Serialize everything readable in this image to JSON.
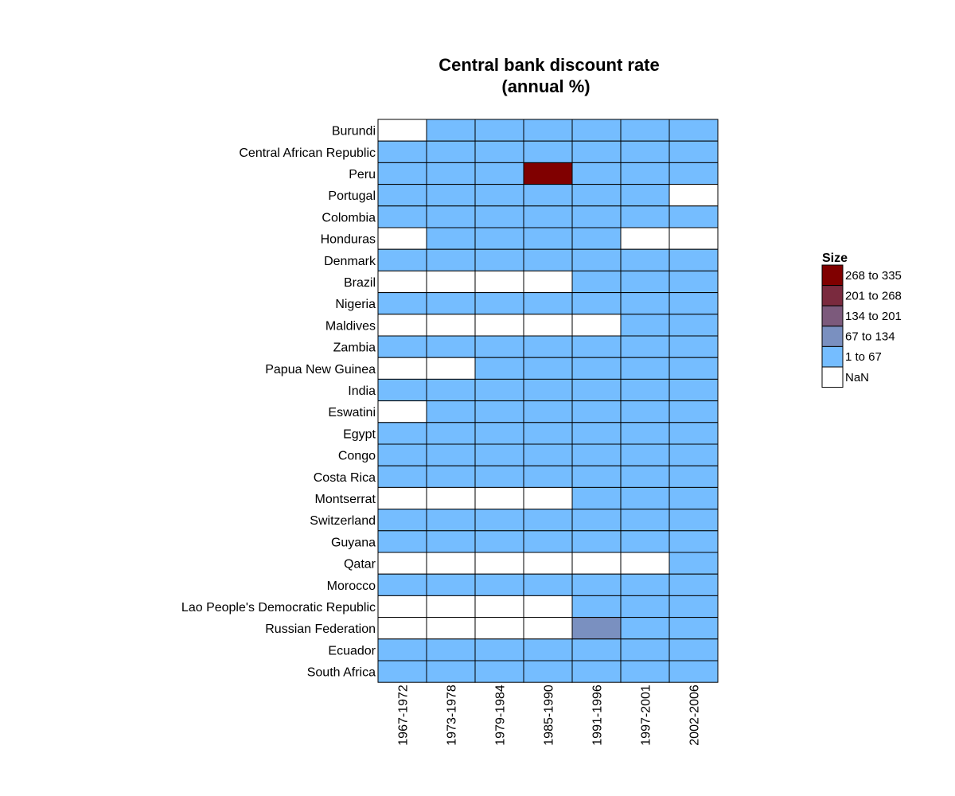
{
  "chart_data": {
    "type": "heatmap",
    "title": [
      "Central bank discount rate",
      "(annual %)"
    ],
    "x": [
      "1967-1972",
      "1973-1978",
      "1979-1984",
      "1985-1990",
      "1991-1996",
      "1997-2001",
      "2002-2006"
    ],
    "y": [
      "Burundi",
      "Central African Republic",
      "Peru",
      "Portugal",
      "Colombia",
      "Honduras",
      "Denmark",
      "Brazil",
      "Nigeria",
      "Maldives",
      "Zambia",
      "Papua New Guinea",
      "India",
      "Eswatini",
      "Egypt",
      "Congo",
      "Costa Rica",
      "Montserrat",
      "Switzerland",
      "Guyana",
      "Qatar",
      "Morocco",
      "Lao People's Democratic Republic",
      "Russian Federation",
      "Ecuador",
      "South Africa"
    ],
    "bins": [
      "NaN",
      "1 to 67",
      "67 to 134",
      "134 to 201",
      "201 to 268",
      "268 to 335"
    ],
    "cells": [
      [
        "NaN",
        "1 to 67",
        "1 to 67",
        "1 to 67",
        "1 to 67",
        "1 to 67",
        "1 to 67"
      ],
      [
        "1 to 67",
        "1 to 67",
        "1 to 67",
        "1 to 67",
        "1 to 67",
        "1 to 67",
        "1 to 67"
      ],
      [
        "1 to 67",
        "1 to 67",
        "1 to 67",
        "268 to 335",
        "1 to 67",
        "1 to 67",
        "1 to 67"
      ],
      [
        "1 to 67",
        "1 to 67",
        "1 to 67",
        "1 to 67",
        "1 to 67",
        "1 to 67",
        "NaN"
      ],
      [
        "1 to 67",
        "1 to 67",
        "1 to 67",
        "1 to 67",
        "1 to 67",
        "1 to 67",
        "1 to 67"
      ],
      [
        "NaN",
        "1 to 67",
        "1 to 67",
        "1 to 67",
        "1 to 67",
        "NaN",
        "NaN"
      ],
      [
        "1 to 67",
        "1 to 67",
        "1 to 67",
        "1 to 67",
        "1 to 67",
        "1 to 67",
        "1 to 67"
      ],
      [
        "NaN",
        "NaN",
        "NaN",
        "NaN",
        "1 to 67",
        "1 to 67",
        "1 to 67"
      ],
      [
        "1 to 67",
        "1 to 67",
        "1 to 67",
        "1 to 67",
        "1 to 67",
        "1 to 67",
        "1 to 67"
      ],
      [
        "NaN",
        "NaN",
        "NaN",
        "NaN",
        "NaN",
        "1 to 67",
        "1 to 67"
      ],
      [
        "1 to 67",
        "1 to 67",
        "1 to 67",
        "1 to 67",
        "1 to 67",
        "1 to 67",
        "1 to 67"
      ],
      [
        "NaN",
        "NaN",
        "1 to 67",
        "1 to 67",
        "1 to 67",
        "1 to 67",
        "1 to 67"
      ],
      [
        "1 to 67",
        "1 to 67",
        "1 to 67",
        "1 to 67",
        "1 to 67",
        "1 to 67",
        "1 to 67"
      ],
      [
        "NaN",
        "1 to 67",
        "1 to 67",
        "1 to 67",
        "1 to 67",
        "1 to 67",
        "1 to 67"
      ],
      [
        "1 to 67",
        "1 to 67",
        "1 to 67",
        "1 to 67",
        "1 to 67",
        "1 to 67",
        "1 to 67"
      ],
      [
        "1 to 67",
        "1 to 67",
        "1 to 67",
        "1 to 67",
        "1 to 67",
        "1 to 67",
        "1 to 67"
      ],
      [
        "1 to 67",
        "1 to 67",
        "1 to 67",
        "1 to 67",
        "1 to 67",
        "1 to 67",
        "1 to 67"
      ],
      [
        "NaN",
        "NaN",
        "NaN",
        "NaN",
        "1 to 67",
        "1 to 67",
        "1 to 67"
      ],
      [
        "1 to 67",
        "1 to 67",
        "1 to 67",
        "1 to 67",
        "1 to 67",
        "1 to 67",
        "1 to 67"
      ],
      [
        "1 to 67",
        "1 to 67",
        "1 to 67",
        "1 to 67",
        "1 to 67",
        "1 to 67",
        "1 to 67"
      ],
      [
        "NaN",
        "NaN",
        "NaN",
        "NaN",
        "NaN",
        "NaN",
        "1 to 67"
      ],
      [
        "1 to 67",
        "1 to 67",
        "1 to 67",
        "1 to 67",
        "1 to 67",
        "1 to 67",
        "1 to 67"
      ],
      [
        "NaN",
        "NaN",
        "NaN",
        "NaN",
        "1 to 67",
        "1 to 67",
        "1 to 67"
      ],
      [
        "NaN",
        "NaN",
        "NaN",
        "NaN",
        "67 to 134",
        "1 to 67",
        "1 to 67"
      ],
      [
        "1 to 67",
        "1 to 67",
        "1 to 67",
        "1 to 67",
        "1 to 67",
        "1 to 67",
        "1 to 67"
      ],
      [
        "1 to 67",
        "1 to 67",
        "1 to 67",
        "1 to 67",
        "1 to 67",
        "1 to 67",
        "1 to 67"
      ]
    ],
    "legend": {
      "title": "Size",
      "position": "right",
      "items": [
        {
          "label": "268 to 335",
          "color": "#800000"
        },
        {
          "label": "201 to 268",
          "color": "#7a2a3e"
        },
        {
          "label": "134 to 201",
          "color": "#7c5a7c"
        },
        {
          "label": "67 to 134",
          "color": "#7a90c0"
        },
        {
          "label": "1 to 67",
          "color": "#75bdff"
        },
        {
          "label": "NaN",
          "color": "#ffffff"
        }
      ]
    },
    "colors": {
      "NaN": "#ffffff",
      "1 to 67": "#75bdff",
      "67 to 134": "#7a90c0",
      "134 to 201": "#7c5a7c",
      "201 to 268": "#7a2a3e",
      "268 to 335": "#800000"
    }
  }
}
